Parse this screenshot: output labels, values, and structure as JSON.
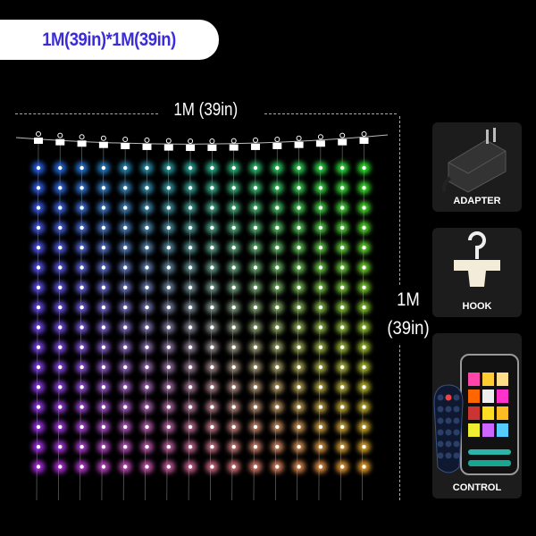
{
  "badge": {
    "text": "1M(39in)*1M(39in)",
    "color": "#3a2bdc"
  },
  "dimensions": {
    "width_label": "1M (39in)",
    "height_label_line1": "1M",
    "height_label_line2": "(39in)"
  },
  "accessories": [
    {
      "label": "ADAPTER",
      "icon": "power-adapter-icon"
    },
    {
      "label": "HOOK",
      "icon": "hook-icon"
    },
    {
      "label": "CONTROL",
      "icon": "remote-and-phone-icon"
    }
  ],
  "colors": {
    "top_left": "#2a6cff",
    "top_right": "#33ff33",
    "bottom_left": "#c030ff",
    "bottom_right": "#ffb030"
  }
}
